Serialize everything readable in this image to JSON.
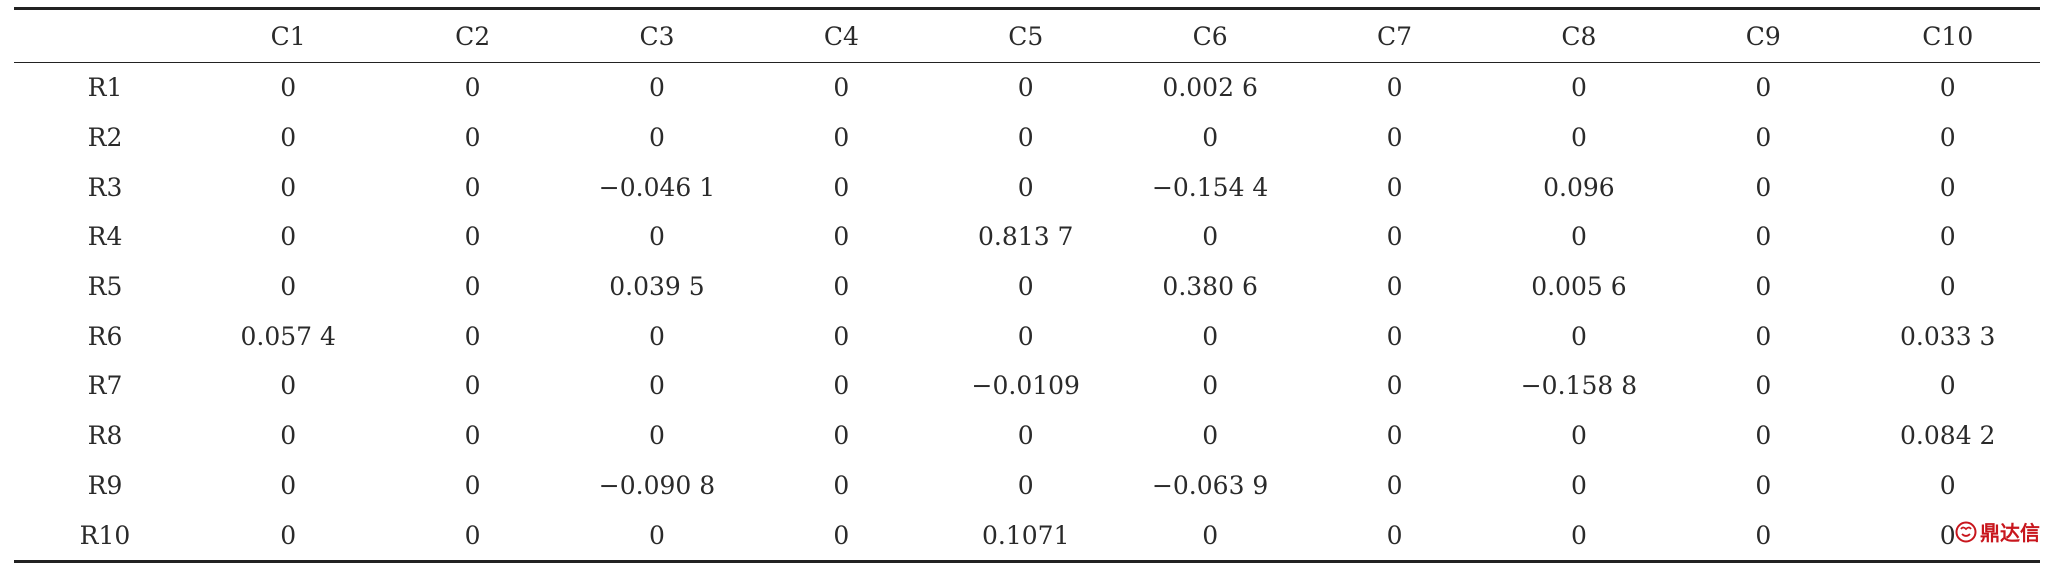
{
  "table": {
    "corner_header": "",
    "column_headers": [
      "C1",
      "C2",
      "C3",
      "C4",
      "C5",
      "C6",
      "C7",
      "C8",
      "C9",
      "C10"
    ],
    "rows": [
      {
        "label": "R1",
        "cells": [
          "0",
          "0",
          "0",
          "0",
          "0",
          "0.002 6",
          "0",
          "0",
          "0",
          "0"
        ]
      },
      {
        "label": "R2",
        "cells": [
          "0",
          "0",
          "0",
          "0",
          "0",
          "0",
          "0",
          "0",
          "0",
          "0"
        ]
      },
      {
        "label": "R3",
        "cells": [
          "0",
          "0",
          "−0.046 1",
          "0",
          "0",
          "−0.154 4",
          "0",
          "0.096",
          "0",
          "0"
        ]
      },
      {
        "label": "R4",
        "cells": [
          "0",
          "0",
          "0",
          "0",
          "0.813 7",
          "0",
          "0",
          "0",
          "0",
          "0"
        ]
      },
      {
        "label": "R5",
        "cells": [
          "0",
          "0",
          "0.039 5",
          "0",
          "0",
          "0.380 6",
          "0",
          "0.005 6",
          "0",
          "0"
        ]
      },
      {
        "label": "R6",
        "cells": [
          "0.057 4",
          "0",
          "0",
          "0",
          "0",
          "0",
          "0",
          "0",
          "0",
          "0.033 3"
        ]
      },
      {
        "label": "R7",
        "cells": [
          "0",
          "0",
          "0",
          "0",
          "−0.0109",
          "0",
          "0",
          "−0.158 8",
          "0",
          "0"
        ]
      },
      {
        "label": "R8",
        "cells": [
          "0",
          "0",
          "0",
          "0",
          "0",
          "0",
          "0",
          "0",
          "0",
          "0.084 2"
        ]
      },
      {
        "label": "R9",
        "cells": [
          "0",
          "0",
          "−0.090 8",
          "0",
          "0",
          "−0.063 9",
          "0",
          "0",
          "0",
          "0"
        ]
      },
      {
        "label": "R10",
        "cells": [
          "0",
          "0",
          "0",
          "0",
          "0.1071",
          "0",
          "0",
          "0",
          "0",
          "0"
        ]
      }
    ]
  },
  "watermark": {
    "text": "鼎达信",
    "color": "#c8161d",
    "icon": "logo-icon"
  }
}
